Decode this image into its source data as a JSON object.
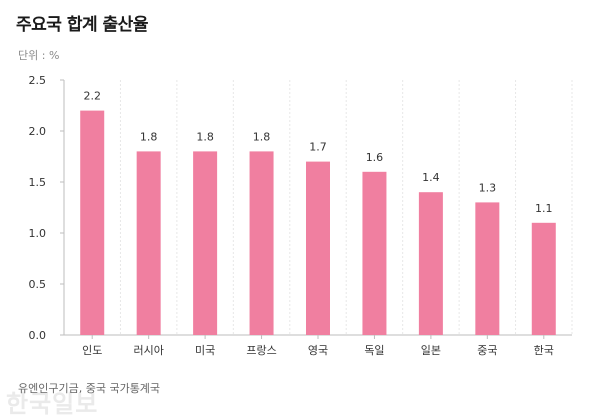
{
  "header": {
    "title": "주요국 합계 출산율",
    "unit": "단위 : %"
  },
  "footer": {
    "source": "유엔인구기금, 중국 국가통계국",
    "watermark": "한국일보"
  },
  "colors": {
    "bar": "#f07fa0",
    "axis": "#bdbdbd",
    "grid": "#e7e7e7",
    "tick_text": "#333333"
  },
  "chart_data": {
    "type": "bar",
    "title": "주요국 합계 출산율",
    "xlabel": "",
    "ylabel": "",
    "categories": [
      "인도",
      "러시아",
      "미국",
      "프랑스",
      "영국",
      "독일",
      "일본",
      "중국",
      "한국"
    ],
    "values": [
      2.2,
      1.8,
      1.8,
      1.8,
      1.7,
      1.6,
      1.4,
      1.3,
      1.1
    ],
    "value_labels": [
      "2.2",
      "1.8",
      "1.8",
      "1.8",
      "1.7",
      "1.6",
      "1.4",
      "1.3",
      "1.1"
    ],
    "ylim": [
      0,
      2.5
    ],
    "yticks": [
      0.0,
      0.5,
      1.0,
      1.5,
      2.0,
      2.5
    ],
    "ytick_labels": [
      "0.0",
      "0.5",
      "1.0",
      "1.5",
      "2.0",
      "2.5"
    ],
    "grid": "vertical-dotted",
    "legend": "none"
  }
}
